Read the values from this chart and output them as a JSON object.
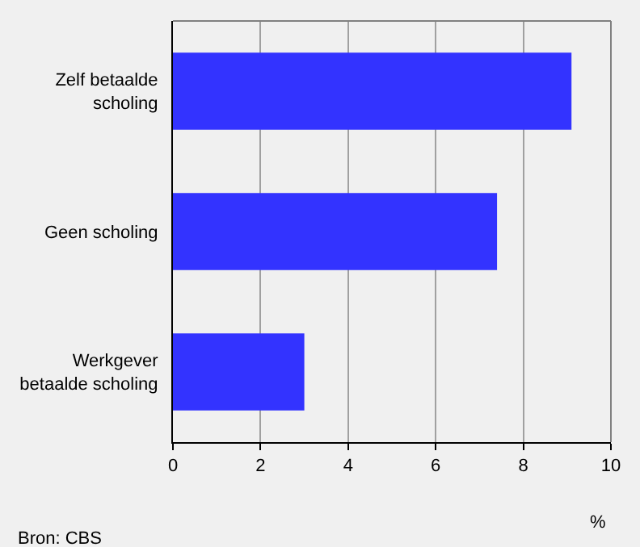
{
  "chart_data": {
    "type": "bar",
    "orientation": "horizontal",
    "categories": [
      "Zelf betaalde\nscholing",
      "Geen scholing",
      "Werkgever\nbetaalde scholing"
    ],
    "values": [
      9.1,
      7.4,
      3.0
    ],
    "color": "#3333ff",
    "xlim": [
      0,
      10
    ],
    "xticks": [
      0,
      2,
      4,
      6,
      8,
      10
    ],
    "xlabel": "%",
    "grid": "x",
    "annotations": [
      "Bron: CBS"
    ]
  }
}
